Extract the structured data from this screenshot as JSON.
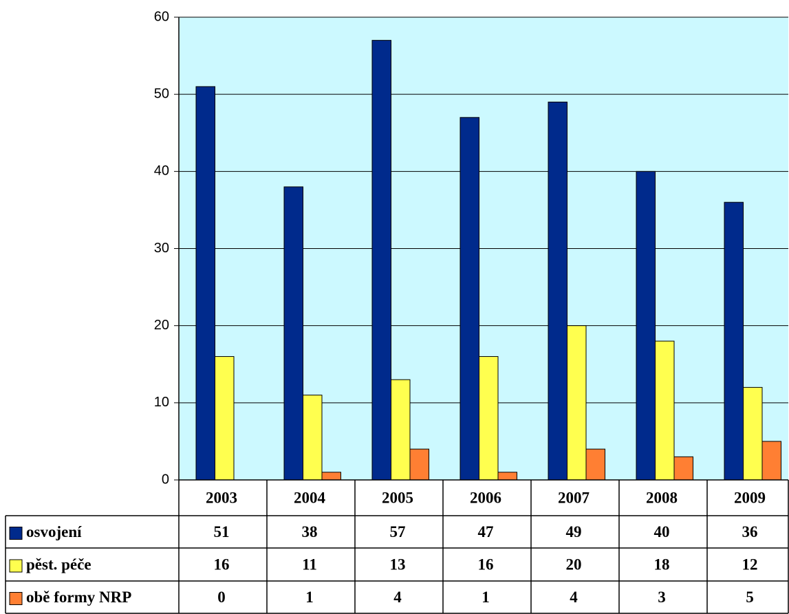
{
  "chart_data": {
    "type": "bar",
    "categories": [
      "2003",
      "2004",
      "2005",
      "2006",
      "2007",
      "2008",
      "2009"
    ],
    "series": [
      {
        "name": "osvojení",
        "color": "#002a8c",
        "values": [
          51,
          38,
          57,
          47,
          49,
          40,
          36
        ]
      },
      {
        "name": "pěst. péče",
        "color": "#ffff4f",
        "values": [
          16,
          11,
          13,
          16,
          20,
          18,
          12
        ]
      },
      {
        "name": "obě formy NRP",
        "color": "#ff7f33",
        "values": [
          0,
          1,
          4,
          1,
          4,
          3,
          5
        ]
      }
    ],
    "ylim": [
      0,
      60
    ],
    "yticks": [
      0,
      10,
      20,
      30,
      40,
      50,
      60
    ],
    "grid": true,
    "background": "#ccf9ff"
  }
}
